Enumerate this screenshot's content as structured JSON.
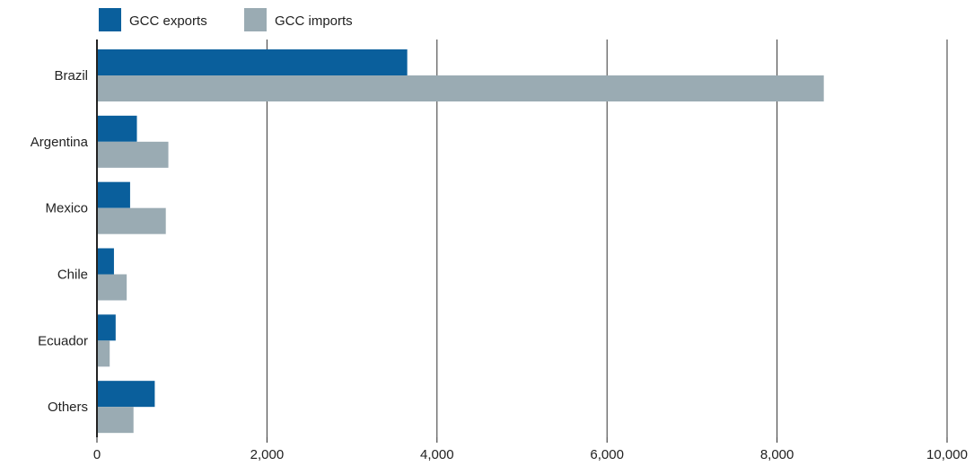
{
  "colors": {
    "exports": "#0a5f9c",
    "imports": "#9aabb3",
    "gridline": "#333333",
    "axis": "#222222"
  },
  "chart_data": {
    "type": "bar",
    "orientation": "horizontal",
    "title": "",
    "xlabel": "",
    "ylabel": "",
    "xlim": [
      0,
      10000
    ],
    "xticks": [
      0,
      2000,
      4000,
      6000,
      8000,
      10000
    ],
    "xtick_labels": [
      "0",
      "2,000",
      "4,000",
      "6,000",
      "8,000",
      "10,000"
    ],
    "grid": "vertical",
    "legend_position": "top-left",
    "categories": [
      "Brazil",
      "Argentina",
      "Mexico",
      "Chile",
      "Ecuador",
      "Others"
    ],
    "series": [
      {
        "name": "GCC exports",
        "color_key": "exports",
        "values": [
          3650,
          470,
          390,
          200,
          220,
          680
        ]
      },
      {
        "name": "GCC imports",
        "color_key": "imports",
        "values": [
          8550,
          840,
          810,
          350,
          150,
          430
        ]
      }
    ]
  }
}
